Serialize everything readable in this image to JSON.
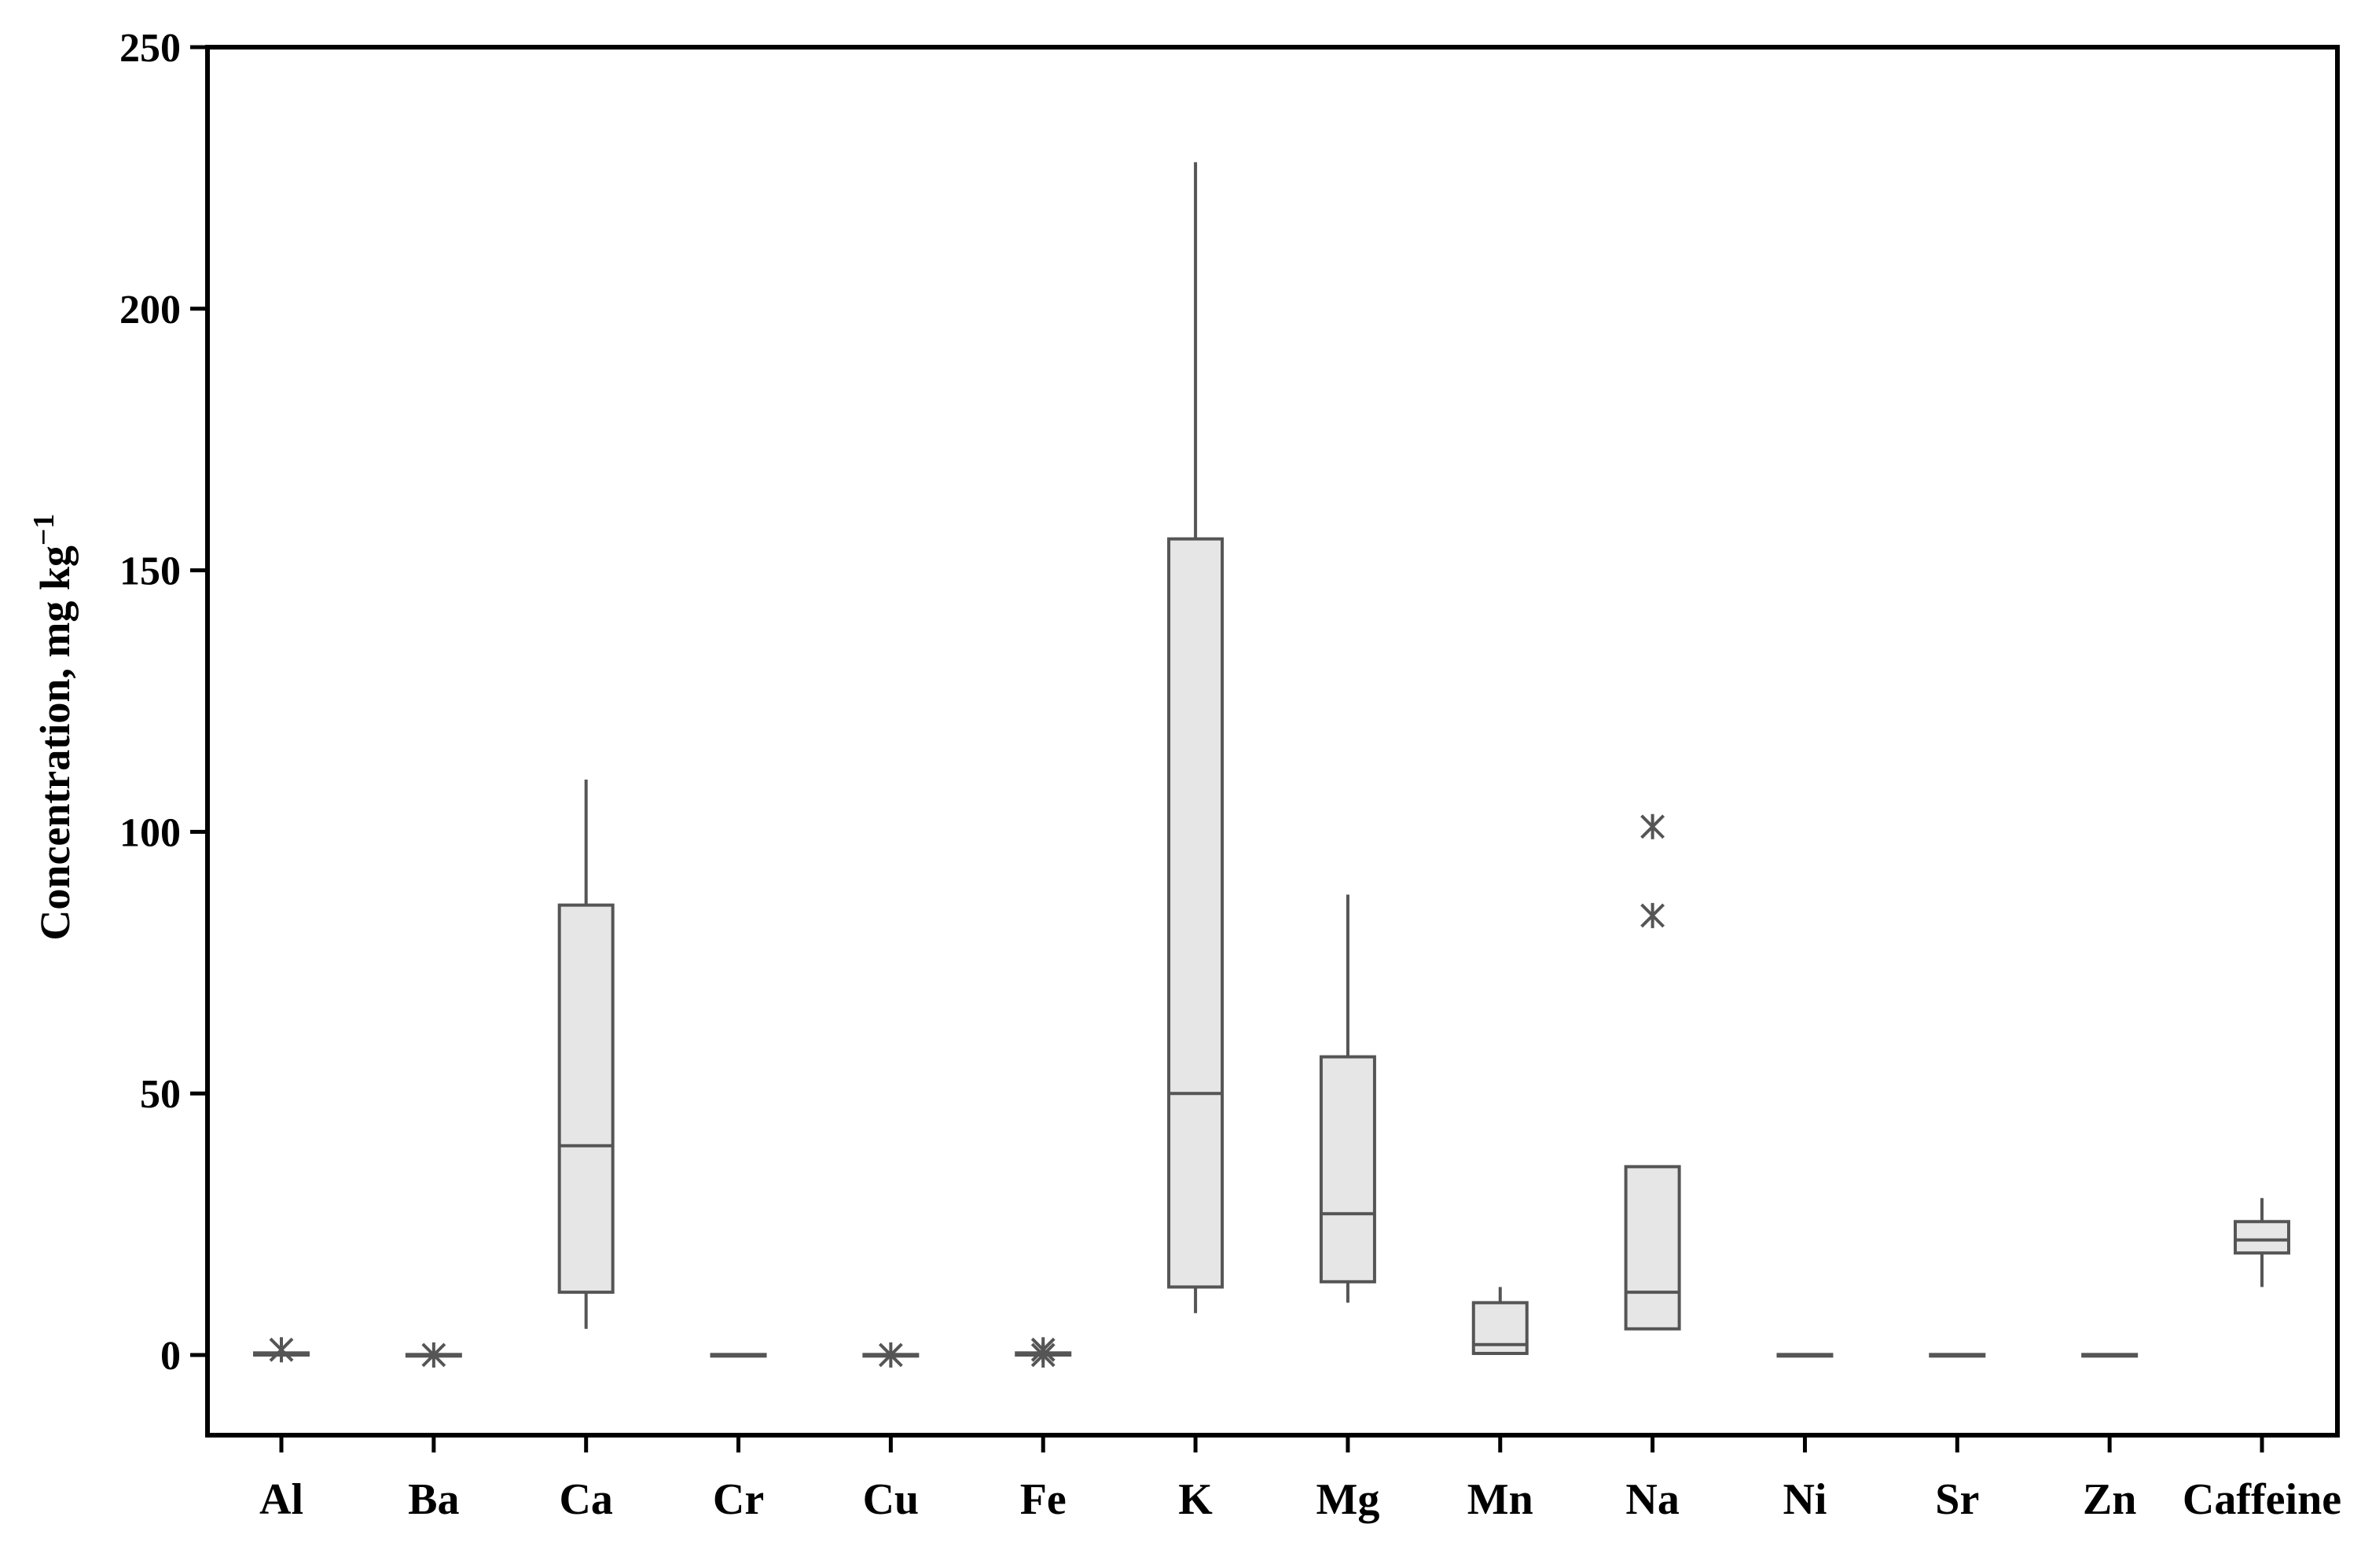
{
  "chart_data": {
    "type": "boxplot",
    "title": "",
    "xlabel": "",
    "ylabel": "Concentration, mg kg",
    "ylabel_superscript": "−1",
    "ylim": [
      -15,
      250
    ],
    "yticks": [
      "0",
      "50",
      "100",
      "150",
      "200",
      "250"
    ],
    "categories": [
      "Al",
      "Ba",
      "Ca",
      "Cr",
      "Cu",
      "Fe",
      "K",
      "Mg",
      "Mn",
      "Na",
      "Ni",
      "Sr",
      "Zn",
      "Caffeine"
    ],
    "boxes": [
      {
        "category": "Al",
        "q1": 0,
        "median": 0.2,
        "q3": 0.4,
        "whisker_low": 0,
        "whisker_high": 0.8,
        "outliers": [
          1.0
        ]
      },
      {
        "category": "Ba",
        "q1": 0,
        "median": 0,
        "q3": 0.1,
        "whisker_low": 0,
        "whisker_high": 0.1,
        "outliers": [
          0
        ]
      },
      {
        "category": "Ca",
        "q1": 12,
        "median": 40,
        "q3": 86,
        "whisker_low": 5,
        "whisker_high": 110,
        "outliers": []
      },
      {
        "category": "Cr",
        "q1": 0,
        "median": 0,
        "q3": 0.1,
        "whisker_low": 0,
        "whisker_high": 0.1,
        "outliers": []
      },
      {
        "category": "Cu",
        "q1": 0,
        "median": 0,
        "q3": 0.1,
        "whisker_low": 0,
        "whisker_high": 0.1,
        "outliers": [
          0
        ]
      },
      {
        "category": "Fe",
        "q1": 0,
        "median": 0.2,
        "q3": 0.4,
        "whisker_low": 0,
        "whisker_high": 0.6,
        "outliers": [
          0,
          1.0
        ]
      },
      {
        "category": "K",
        "q1": 13,
        "median": 50,
        "q3": 156,
        "whisker_low": 8,
        "whisker_high": 228,
        "outliers": []
      },
      {
        "category": "Mg",
        "q1": 14,
        "median": 27,
        "q3": 57,
        "whisker_low": 10,
        "whisker_high": 88,
        "outliers": []
      },
      {
        "category": "Mn",
        "q1": 0.3,
        "median": 2,
        "q3": 10,
        "whisker_low": 0,
        "whisker_high": 13,
        "outliers": []
      },
      {
        "category": "Na",
        "q1": 5,
        "median": 12,
        "q3": 36,
        "whisker_low": 5,
        "whisker_high": 36,
        "outliers": [
          84,
          101
        ]
      },
      {
        "category": "Ni",
        "q1": 0,
        "median": 0,
        "q3": 0.1,
        "whisker_low": 0,
        "whisker_high": 0.1,
        "outliers": []
      },
      {
        "category": "Sr",
        "q1": 0,
        "median": 0,
        "q3": 0.1,
        "whisker_low": 0,
        "whisker_high": 0.1,
        "outliers": []
      },
      {
        "category": "Zn",
        "q1": 0,
        "median": 0,
        "q3": 0.1,
        "whisker_low": 0,
        "whisker_high": 0.1,
        "outliers": []
      },
      {
        "category": "Caffeine",
        "q1": 19.5,
        "median": 22,
        "q3": 25.5,
        "whisker_low": 13,
        "whisker_high": 30,
        "outliers": []
      }
    ],
    "grid": false,
    "legend": "none",
    "colors": {
      "box_fill": "#e6e6e6",
      "box_stroke": "#555555",
      "axis": "#000000",
      "outlier": "#555555"
    }
  }
}
